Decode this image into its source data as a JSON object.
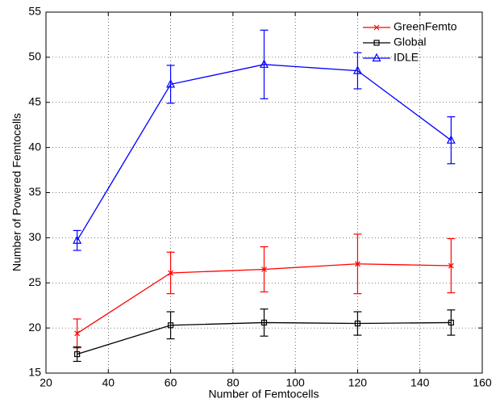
{
  "chart_data": {
    "type": "line",
    "x_label": "Number of Femtocells",
    "y_label": "Number of Powered Femtocells",
    "x": [
      30,
      60,
      90,
      120,
      150
    ],
    "series": [
      {
        "name": "GreenFemto",
        "color": "#ff0000",
        "marker": "x",
        "values": [
          19.4,
          26.1,
          26.5,
          27.1,
          26.9
        ],
        "errors": [
          1.6,
          2.3,
          2.5,
          3.3,
          3.0
        ]
      },
      {
        "name": "Global",
        "color": "#000000",
        "marker": "square",
        "values": [
          17.1,
          20.3,
          20.6,
          20.5,
          20.6
        ],
        "errors": [
          0.8,
          1.5,
          1.5,
          1.3,
          1.4
        ]
      },
      {
        "name": "IDLE",
        "color": "#0000ff",
        "marker": "triangle",
        "values": [
          29.7,
          47.0,
          49.2,
          48.5,
          40.8
        ],
        "errors": [
          1.1,
          2.1,
          3.8,
          2.0,
          2.6
        ]
      }
    ],
    "xlim": [
      20,
      160
    ],
    "xticks": [
      20,
      40,
      60,
      80,
      100,
      120,
      140,
      160
    ],
    "ylim": [
      15,
      55
    ],
    "yticks": [
      15,
      20,
      25,
      30,
      35,
      40,
      45,
      50,
      55
    ],
    "grid": true,
    "legend": "upper right"
  }
}
